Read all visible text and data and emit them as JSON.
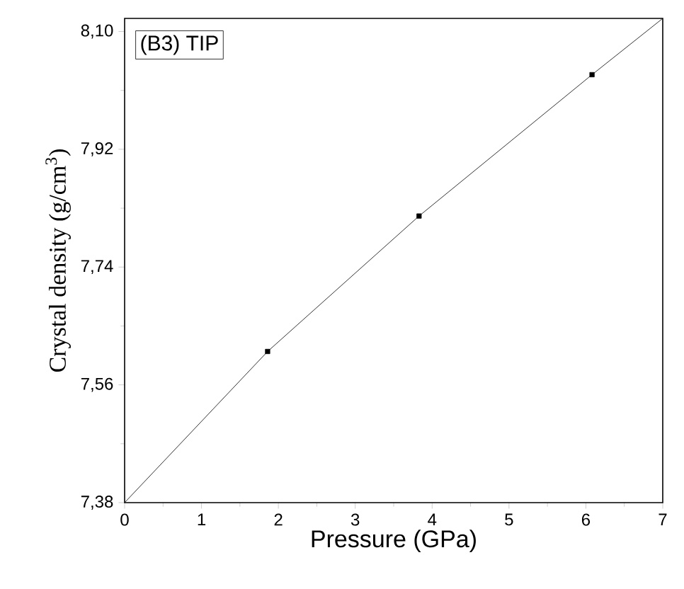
{
  "chart_data": {
    "type": "scatter",
    "xlabel": "Pressure (GPa)",
    "ylabel": "Crystal density (g/cm$^{3}$)",
    "annotations": [
      "(B3) TIP"
    ],
    "xlim": [
      0,
      7
    ],
    "xticks": [
      0,
      1,
      2,
      3,
      4,
      5,
      6,
      7
    ],
    "ylim": [
      7.38,
      8.12
    ],
    "yticks": [
      {
        "value": 7.38,
        "label": "7,38"
      },
      {
        "value": 7.56,
        "label": "7,56"
      },
      {
        "value": 7.74,
        "label": "7,74"
      },
      {
        "value": 7.92,
        "label": "7,92"
      },
      {
        "value": 8.1,
        "label": "8,10"
      }
    ],
    "grid": false,
    "series": [
      {
        "color": "#000000",
        "marker": "square",
        "x": [
          1.86,
          3.83,
          6.08
        ],
        "values": [
          7.611,
          7.818,
          8.034
        ]
      },
      {
        "type": "line",
        "color": "#000000",
        "line_style": "solid",
        "x": [
          0,
          1.86,
          3.83,
          6.08,
          7
        ],
        "values": [
          7.38,
          7.611,
          7.818,
          8.034,
          8.12
        ]
      }
    ]
  }
}
